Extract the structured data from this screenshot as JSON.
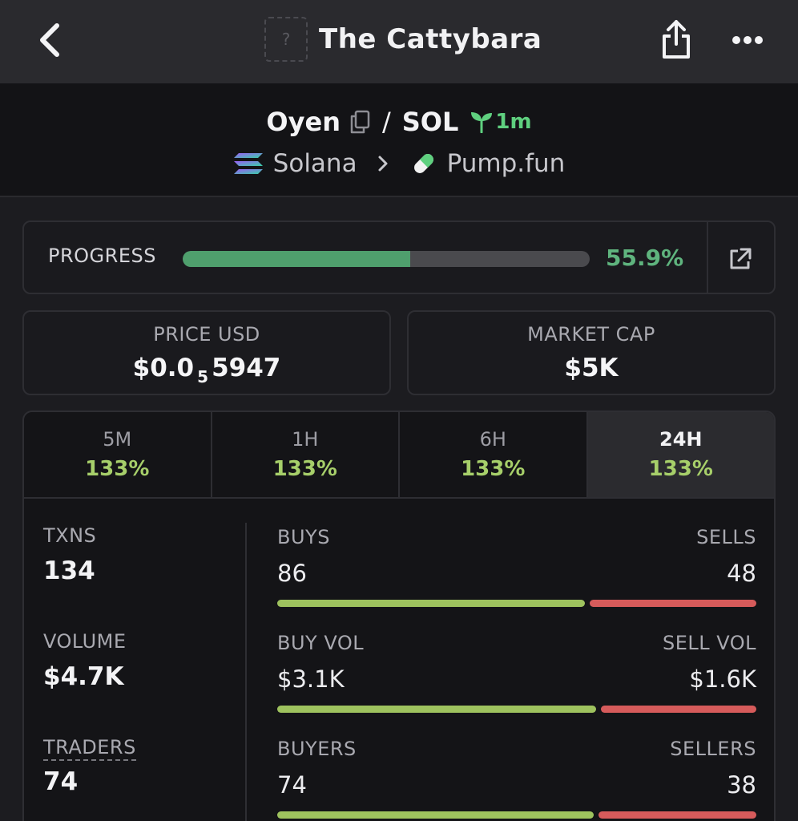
{
  "topbar": {
    "title": "The Cattybara",
    "avatar_placeholder": "?",
    "icons": {
      "back": "chevron-left-icon",
      "share": "share-icon",
      "more": "more-horizontal-icon"
    }
  },
  "pair": {
    "base": "Oyen",
    "sep": "/",
    "quote": "SOL",
    "age": "1m",
    "chain": "Solana",
    "dex": "Pump.fun",
    "icons": {
      "copy": "copy-icon",
      "age": "seedling-icon",
      "chain": "solana-logo-icon",
      "dex": "pill-icon",
      "arrow": "chevron-right-icon"
    }
  },
  "progress": {
    "label": "PROGRESS",
    "value_text": "55.9%",
    "value": 0.559,
    "icon": "external-link-icon"
  },
  "price": {
    "label": "PRICE USD",
    "prefix": "$0.0",
    "zeros": "5",
    "digits": "5947"
  },
  "market_cap": {
    "label": "MARKET CAP",
    "value": "$5K"
  },
  "timeframes": [
    {
      "name": "5M",
      "change": "133%"
    },
    {
      "name": "1H",
      "change": "133%"
    },
    {
      "name": "6H",
      "change": "133%"
    },
    {
      "name": "24H",
      "change": "133%",
      "active": true
    }
  ],
  "stats": {
    "txns": {
      "label": "TXNS",
      "value": "134"
    },
    "volume": {
      "label": "VOLUME",
      "value": "$4.7K"
    },
    "traders": {
      "label": "TRADERS",
      "value": "74"
    },
    "buys_sells": {
      "left_label": "BUYS",
      "right_label": "SELLS",
      "left": "86",
      "right": "48",
      "ratio": 0.642
    },
    "vol_split": {
      "left_label": "BUY VOL",
      "right_label": "SELL VOL",
      "left": "$3.1K",
      "right": "$1.6K",
      "ratio": 0.665
    },
    "traders_split": {
      "left_label": "BUYERS",
      "right_label": "SELLERS",
      "left": "74",
      "right": "38",
      "ratio": 0.661
    }
  },
  "colors": {
    "accent_green": "#5fb47e",
    "change_green": "#a7cf6a",
    "buy_bar": "#9ec25e",
    "sell_bar": "#d65b5b",
    "background": "#1c1c20"
  }
}
